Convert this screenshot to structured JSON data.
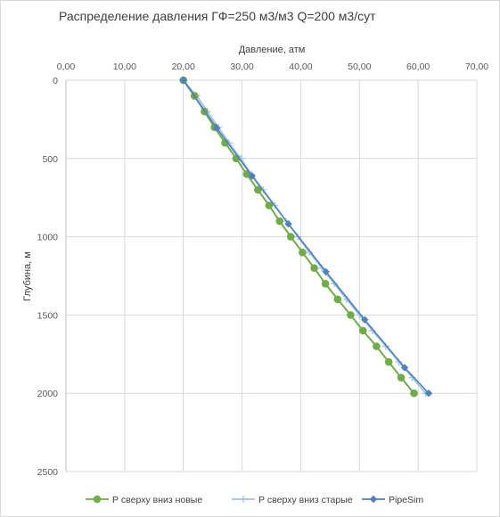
{
  "chart_data": {
    "type": "line",
    "title": "Распределение давления ГФ=250 м3/м3  Q=200  м3/сут",
    "xlabel": "Давление,  атм",
    "ylabel": "Глубина, м",
    "xlim": [
      0,
      70
    ],
    "ylim": [
      0,
      2500
    ],
    "x_axis_position": "top",
    "y_axis_inverted": true,
    "x_ticks": [
      "0,00",
      "10,00",
      "20,00",
      "30,00",
      "40,00",
      "50,00",
      "60,00",
      "70,00"
    ],
    "y_ticks": [
      "0",
      "500",
      "1000",
      "1500",
      "2000",
      "2500"
    ],
    "grid": true,
    "legend_position": "bottom",
    "series": [
      {
        "name": "Р сверху вниз новые",
        "color": "#70ad47",
        "marker": "circle",
        "x": [
          20.0,
          21.9,
          23.6,
          25.3,
          27.1,
          29.0,
          30.8,
          32.7,
          34.6,
          36.4,
          38.3,
          40.3,
          42.3,
          44.2,
          46.3,
          48.5,
          50.6,
          52.9,
          55.0,
          57.1,
          59.3
        ],
        "y": [
          0,
          100,
          200,
          300,
          400,
          500,
          600,
          700,
          800,
          900,
          1000,
          1100,
          1200,
          1300,
          1400,
          1500,
          1600,
          1700,
          1800,
          1900,
          2000
        ]
      },
      {
        "name": "Р сверху вниз старые",
        "color": "#9dc3e6",
        "marker": "plus",
        "x": [
          20.0,
          22.3,
          24.1,
          26.0,
          27.8,
          29.8,
          31.6,
          33.6,
          35.6,
          37.5,
          39.5,
          41.5,
          43.6,
          45.7,
          47.8,
          50.0,
          52.2,
          54.5,
          56.7,
          59.0,
          61.3
        ],
        "y": [
          0,
          100,
          200,
          300,
          400,
          500,
          600,
          700,
          800,
          900,
          1000,
          1100,
          1200,
          1300,
          1400,
          1500,
          1600,
          1700,
          1800,
          1900,
          2000
        ]
      },
      {
        "name": "PipeSim",
        "color": "#4f81bd",
        "marker": "diamond",
        "x": [
          20.0,
          25.7,
          31.7,
          37.9,
          44.3,
          50.9,
          57.7,
          61.8
        ],
        "y": [
          0,
          306,
          612,
          918,
          1224,
          1530,
          1836,
          2000
        ]
      }
    ]
  }
}
